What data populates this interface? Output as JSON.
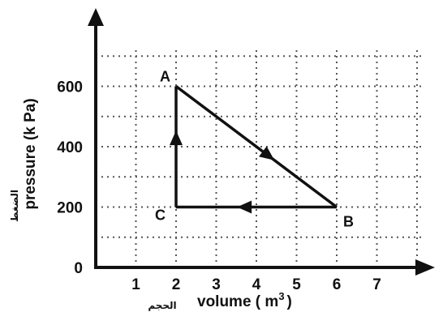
{
  "chart_data": {
    "type": "line",
    "title": "",
    "xlabel": "volume ( m 3 )",
    "xlabel_base": "volume ( m",
    "xlabel_power": "3",
    "xlabel_close": ")",
    "xlabel_arabic": "الحجم",
    "ylabel": "pressure (k Pa)",
    "ylabel_arabic": "الضغط",
    "xlim": [
      0,
      7
    ],
    "ylim": [
      0,
      600
    ],
    "x_ticks": [
      1,
      2,
      3,
      4,
      5,
      6,
      7
    ],
    "y_ticks": [
      0,
      200,
      400,
      600
    ],
    "x_gridlines": [
      1,
      2,
      3,
      4,
      5,
      6,
      7,
      8
    ],
    "y_gridlines": [
      100,
      200,
      300,
      400,
      500,
      600,
      700
    ],
    "grid": true,
    "points": [
      {
        "label": "A",
        "x": 2,
        "y": 600
      },
      {
        "label": "B",
        "x": 6,
        "y": 200
      },
      {
        "label": "C",
        "x": 2,
        "y": 200
      }
    ],
    "cycle": [
      "A",
      "B",
      "C",
      "A"
    ],
    "series": [
      {
        "x": [
          2,
          6,
          2,
          2
        ],
        "y": [
          600,
          200,
          200,
          600
        ]
      }
    ],
    "colors": {
      "line": "#111111",
      "grid": "#555555",
      "axis": "#111111"
    }
  }
}
